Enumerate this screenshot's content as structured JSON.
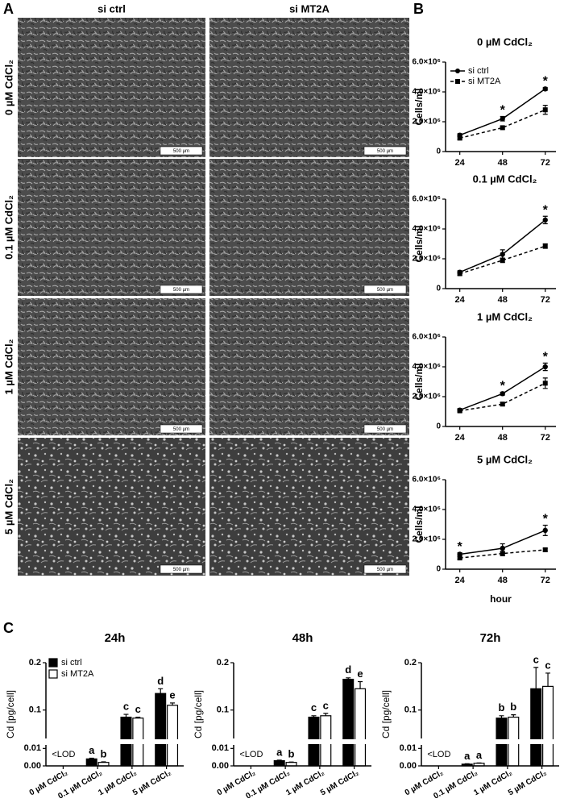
{
  "figure": {
    "panel_labels": [
      "A",
      "B",
      "C"
    ],
    "column_labels": [
      "si ctrl",
      "si MT2A"
    ],
    "row_labels": [
      "0 µM CdCl₂",
      "0.1 µM CdCl₂",
      "1 µM CdCl₂",
      "5 µM CdCl₂"
    ],
    "scale_bars": [
      [
        "500 µm",
        "500 µm"
      ],
      [
        "500 µm",
        "500 µm"
      ],
      [
        "500 µm",
        "500 µm"
      ],
      [
        "500 µm",
        "500 µm"
      ]
    ]
  },
  "chart_data": [
    {
      "type": "line",
      "title": "0 µM CdCl₂",
      "y_label": "Cells/ml",
      "x": [
        24,
        48,
        72
      ],
      "xlim": [
        16,
        78
      ],
      "xticks": [
        24,
        48,
        72
      ],
      "ylim": [
        0,
        6000000
      ],
      "yticks": [
        0,
        {
          "value": 2000000,
          "label": "2.0×10⁶"
        },
        {
          "value": 4000000,
          "label": "4.0×10⁶"
        },
        {
          "value": 6000000,
          "label": "6.0×10⁶"
        }
      ],
      "legend": true,
      "series": [
        {
          "name": "si ctrl",
          "color": "#000000",
          "dash": false,
          "marker": "circle",
          "values": [
            1100000,
            2200000,
            4200000
          ],
          "errors": [
            100000,
            150000,
            100000
          ]
        },
        {
          "name": "si MT2A",
          "color": "#000000",
          "dash": true,
          "marker": "square",
          "values": [
            900000,
            1600000,
            2800000
          ],
          "errors": [
            100000,
            100000,
            300000
          ]
        }
      ],
      "annotations": [
        {
          "x": 48,
          "text": "*"
        },
        {
          "x": 72,
          "text": "*"
        }
      ]
    },
    {
      "type": "line",
      "title": "0.1 µM CdCl₂",
      "y_label": "Cells/ml",
      "x": [
        24,
        48,
        72
      ],
      "xlim": [
        16,
        78
      ],
      "xticks": [
        24,
        48,
        72
      ],
      "ylim": [
        0,
        6000000
      ],
      "yticks": [
        0,
        {
          "value": 2000000,
          "label": "2.0×10⁶"
        },
        {
          "value": 4000000,
          "label": "4.0×10⁶"
        },
        {
          "value": 6000000,
          "label": "6.0×10⁶"
        }
      ],
      "legend": false,
      "series": [
        {
          "name": "si ctrl",
          "color": "#000000",
          "dash": false,
          "marker": "circle",
          "values": [
            1100000,
            2300000,
            4600000
          ],
          "errors": [
            100000,
            300000,
            250000
          ]
        },
        {
          "name": "si MT2A",
          "color": "#000000",
          "dash": true,
          "marker": "square",
          "values": [
            1000000,
            1900000,
            2850000
          ],
          "errors": [
            100000,
            150000,
            150000
          ]
        }
      ],
      "annotations": [
        {
          "x": 72,
          "text": "*"
        }
      ]
    },
    {
      "type": "line",
      "title": "1 µM CdCl₂",
      "y_label": "Cells/ml",
      "x": [
        24,
        48,
        72
      ],
      "xlim": [
        16,
        78
      ],
      "xticks": [
        24,
        48,
        72
      ],
      "ylim": [
        0,
        6000000
      ],
      "yticks": [
        0,
        {
          "value": 2000000,
          "label": "2.0×10⁶"
        },
        {
          "value": 4000000,
          "label": "4.0×10⁶"
        },
        {
          "value": 6000000,
          "label": "6.0×10⁶"
        }
      ],
      "legend": false,
      "series": [
        {
          "name": "si ctrl",
          "color": "#000000",
          "dash": false,
          "marker": "circle",
          "values": [
            1100000,
            2200000,
            4000000
          ],
          "errors": [
            100000,
            100000,
            250000
          ]
        },
        {
          "name": "si MT2A",
          "color": "#000000",
          "dash": true,
          "marker": "square",
          "values": [
            1050000,
            1500000,
            2900000
          ],
          "errors": [
            100000,
            100000,
            350000
          ]
        }
      ],
      "annotations": [
        {
          "x": 48,
          "text": "*"
        },
        {
          "x": 72,
          "text": "*"
        }
      ]
    },
    {
      "type": "line",
      "title": "5 µM CdCl₂",
      "y_label": "Cells/ml",
      "x_label": "hour",
      "x": [
        24,
        48,
        72
      ],
      "xlim": [
        16,
        78
      ],
      "xticks": [
        24,
        48,
        72
      ],
      "ylim": [
        0,
        6000000
      ],
      "yticks": [
        0,
        {
          "value": 2000000,
          "label": "2.0×10⁶"
        },
        {
          "value": 4000000,
          "label": "4.0×10⁶"
        },
        {
          "value": 6000000,
          "label": "6.0×10⁶"
        }
      ],
      "legend": false,
      "series": [
        {
          "name": "si ctrl",
          "color": "#000000",
          "dash": false,
          "marker": "circle",
          "values": [
            1000000,
            1400000,
            2600000
          ],
          "errors": [
            100000,
            300000,
            350000
          ]
        },
        {
          "name": "si MT2A",
          "color": "#000000",
          "dash": true,
          "marker": "square",
          "values": [
            750000,
            1050000,
            1300000
          ],
          "errors": [
            100000,
            150000,
            100000
          ]
        }
      ],
      "annotations": [
        {
          "x": 24,
          "text": "*"
        },
        {
          "x": 72,
          "text": "*"
        }
      ]
    },
    {
      "type": "bar",
      "title": "24h",
      "y_label": "Cd [pg/cell]",
      "categories": [
        "0 µM CdCl₂",
        "0.1 µM CdCl₂",
        "1 µM CdCl₂",
        "5 µM CdCl₂"
      ],
      "ylim": [
        0,
        0.2
      ],
      "ybreak": [
        0.012,
        0.04
      ],
      "yticks": [
        {
          "value": 0,
          "label": "0.00"
        },
        0.01,
        0.1,
        0.2
      ],
      "legend": true,
      "series": [
        {
          "name": "si ctrl",
          "color": "#000000",
          "values": [
            null,
            0.004,
            0.085,
            0.135
          ],
          "errors": [
            null,
            0.0004,
            0.006,
            0.01
          ],
          "letters": [
            null,
            "a",
            "c",
            "d"
          ]
        },
        {
          "name": "si MT2A",
          "color": "#ffffff",
          "values": [
            null,
            0.002,
            0.083,
            0.11
          ],
          "errors": [
            null,
            0.0003,
            0.002,
            0.005
          ],
          "letters": [
            null,
            "b",
            "c",
            "e"
          ]
        }
      ],
      "annotations": [
        {
          "category": 0,
          "text": "<LOD"
        }
      ]
    },
    {
      "type": "bar",
      "title": "48h",
      "y_label": "Cd [pg/cell]",
      "categories": [
        "0 µM CdCl₂",
        "0.1 µM CdCl₂",
        "1 µM CdCl₂",
        "5 µM CdCl₂"
      ],
      "ylim": [
        0,
        0.2
      ],
      "ybreak": [
        0.012,
        0.04
      ],
      "yticks": [
        {
          "value": 0,
          "label": "0.00"
        },
        0.01,
        0.1,
        0.2
      ],
      "legend": false,
      "series": [
        {
          "name": "si ctrl",
          "color": "#000000",
          "values": [
            null,
            0.003,
            0.085,
            0.165
          ],
          "errors": [
            null,
            0.0003,
            0.003,
            0.003
          ],
          "letters": [
            null,
            "a",
            "c",
            "d"
          ]
        },
        {
          "name": "si MT2A",
          "color": "#ffffff",
          "values": [
            null,
            0.002,
            0.088,
            0.145
          ],
          "errors": [
            null,
            0.0002,
            0.005,
            0.015
          ],
          "letters": [
            null,
            "b",
            "c",
            "e"
          ]
        }
      ],
      "annotations": [
        {
          "category": 0,
          "text": "<LOD"
        }
      ]
    },
    {
      "type": "bar",
      "title": "72h",
      "y_label": "Cd [pg/cell]",
      "categories": [
        "0 µM CdCl₂",
        "0.1 µM CdCl₂",
        "1 µM CdCl₂",
        "5 µM CdCl₂"
      ],
      "ylim": [
        0,
        0.2
      ],
      "ybreak": [
        0.012,
        0.04
      ],
      "yticks": [
        {
          "value": 0,
          "label": "0.00"
        },
        0.01,
        0.1,
        0.2
      ],
      "legend": false,
      "series": [
        {
          "name": "si ctrl",
          "color": "#000000",
          "values": [
            null,
            0.001,
            0.083,
            0.145
          ],
          "errors": [
            null,
            0.0002,
            0.005,
            0.045
          ],
          "letters": [
            null,
            "a",
            "b",
            "c"
          ]
        },
        {
          "name": "si MT2A",
          "color": "#ffffff",
          "values": [
            null,
            0.0015,
            0.085,
            0.15
          ],
          "errors": [
            null,
            0.0002,
            0.005,
            0.028
          ],
          "letters": [
            null,
            "a",
            "b",
            "c"
          ]
        }
      ],
      "annotations": [
        {
          "category": 0,
          "text": "<LOD"
        }
      ]
    }
  ]
}
